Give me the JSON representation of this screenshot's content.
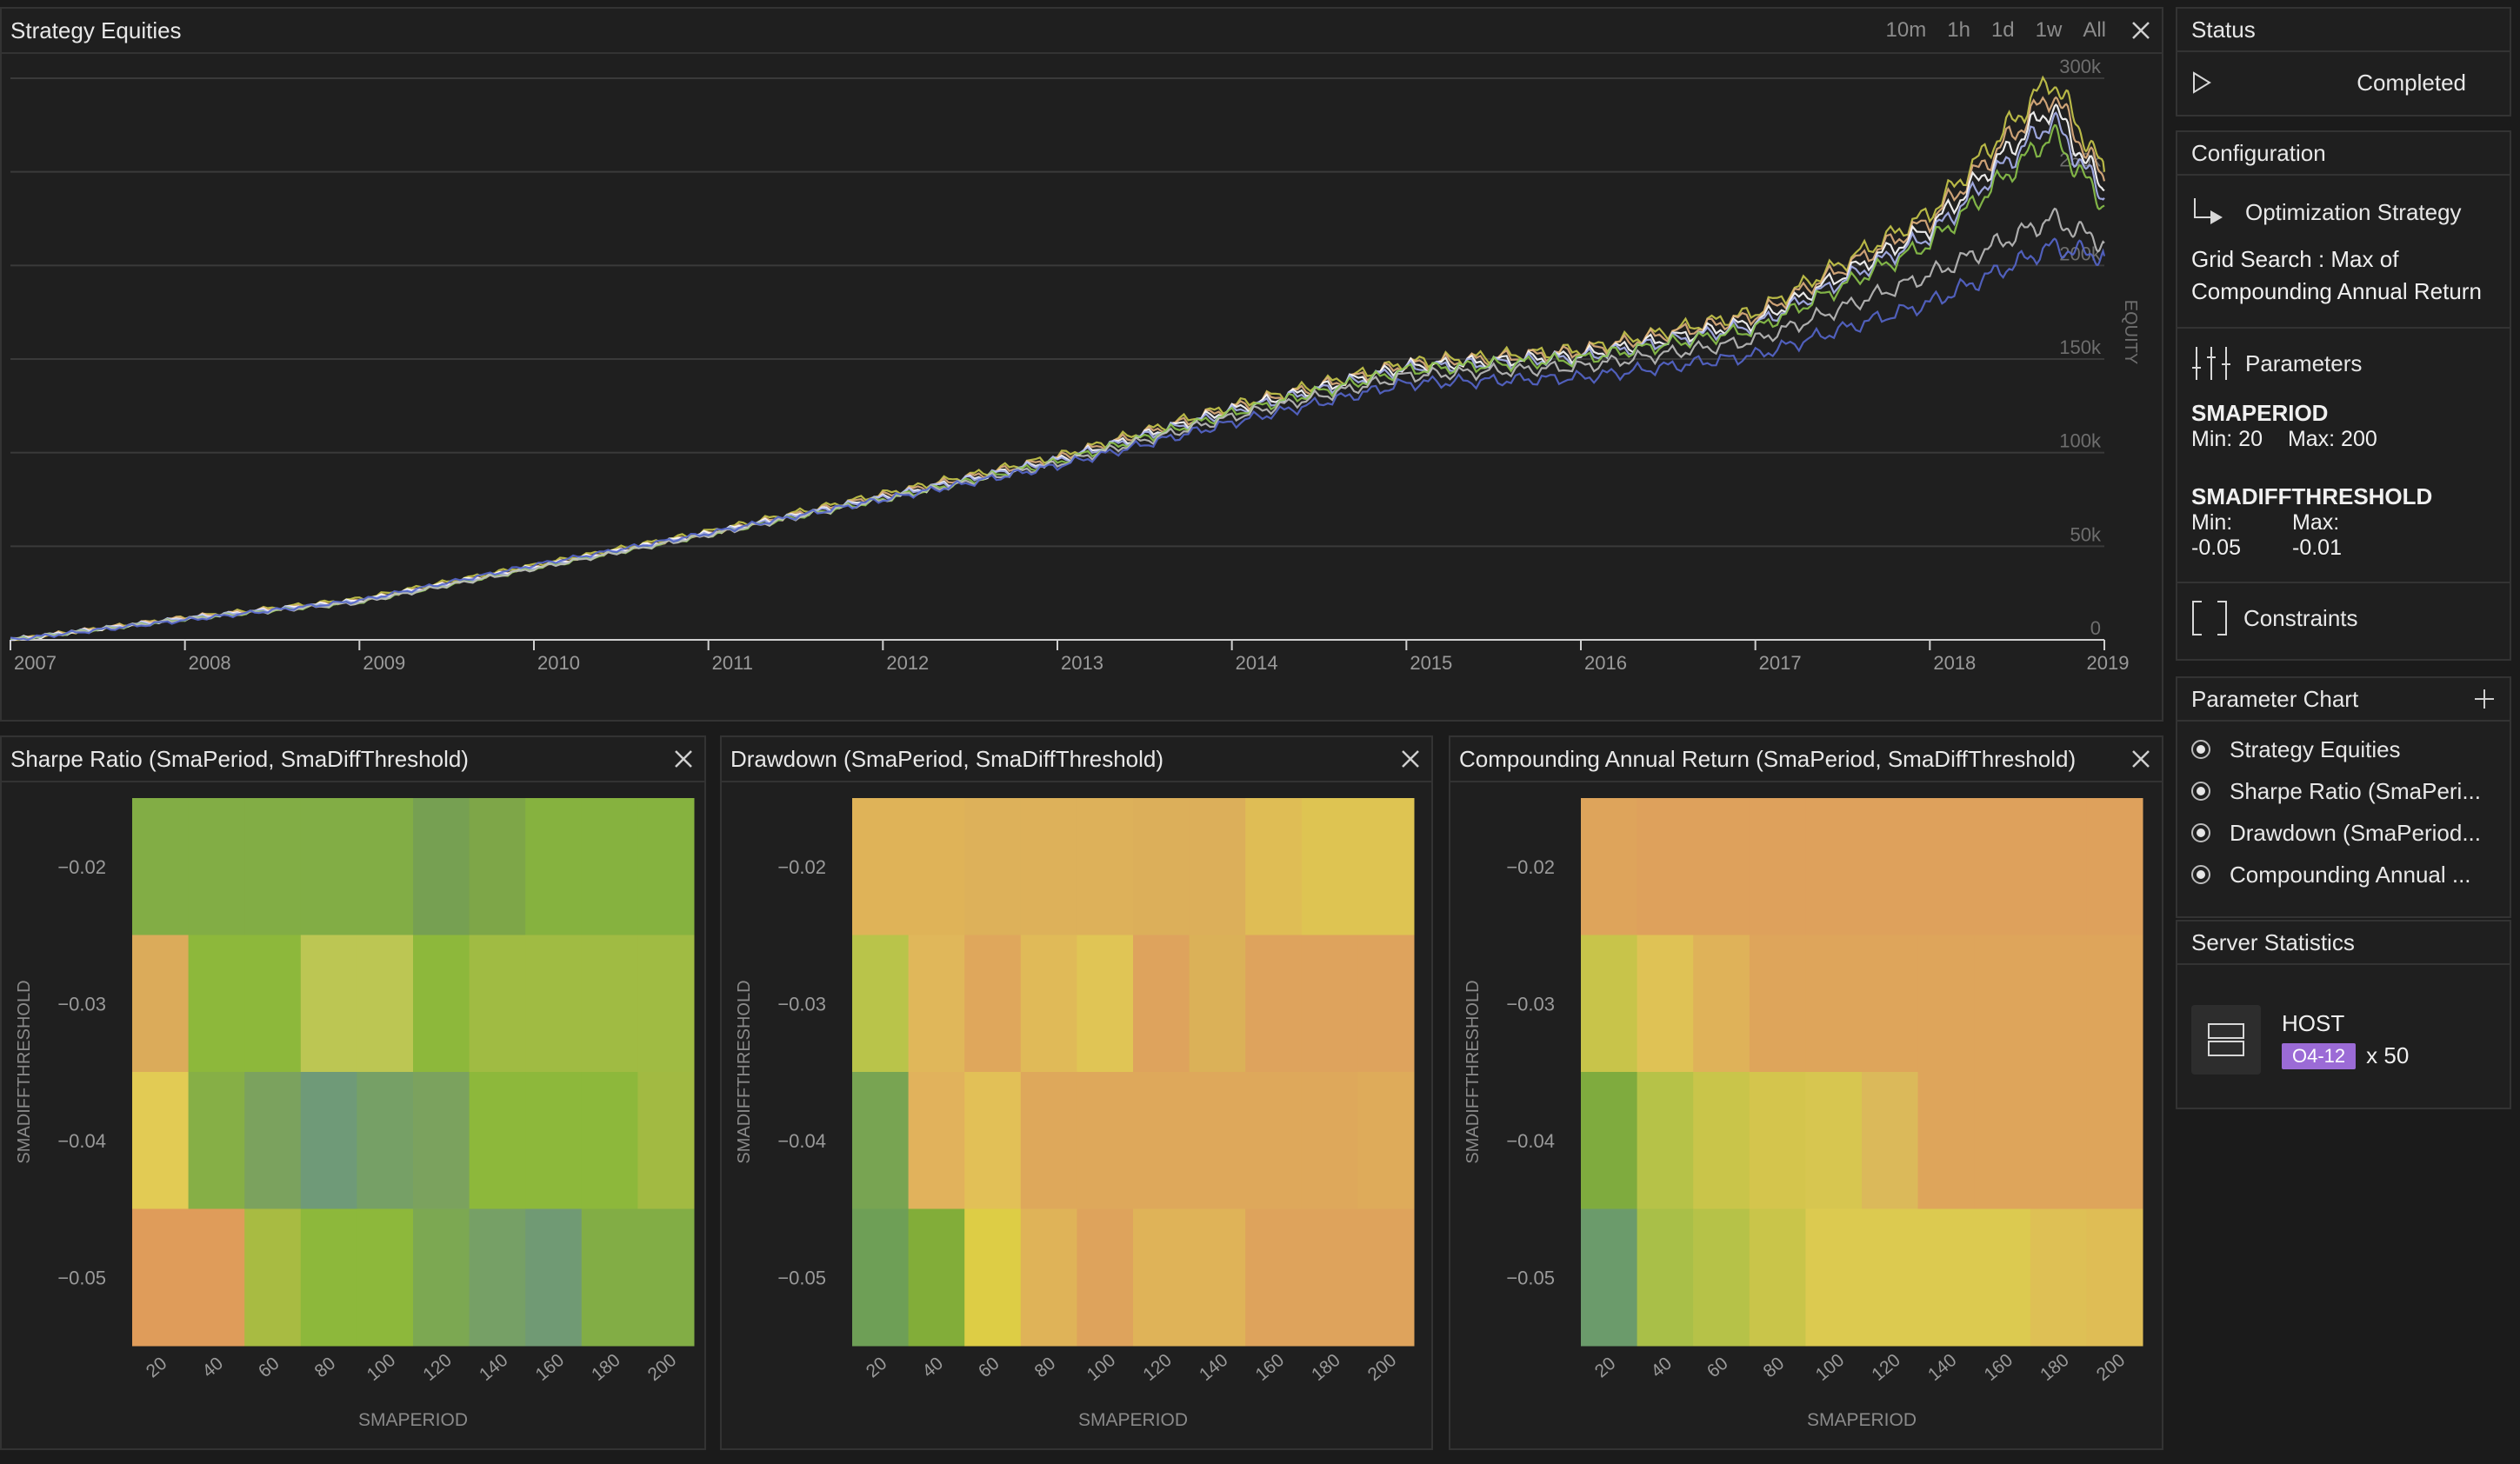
{
  "colors": {
    "background": "#1b1b1b",
    "panel": "#1f1f1f",
    "border": "#333333",
    "host_badge": "#9b6bd6"
  },
  "equity_panel": {
    "title": "Strategy Equities",
    "timeframes": [
      "10m",
      "1h",
      "1d",
      "1w",
      "All"
    ],
    "close_icon": "close-icon",
    "axis_label": "EQUITY",
    "y_ticks": [
      "0",
      "50k",
      "100k",
      "150k",
      "200k",
      "250k",
      "300k"
    ],
    "x_ticks": [
      "2007",
      "2008",
      "2009",
      "2010",
      "2011",
      "2012",
      "2013",
      "2014",
      "2015",
      "2016",
      "2017",
      "2018",
      "2019"
    ]
  },
  "chart_data": [
    {
      "type": "line",
      "title": "Strategy Equities",
      "ylabel": "EQUITY",
      "ylim": [
        0,
        300000
      ],
      "xlim": [
        "2007",
        "2019"
      ],
      "x": [
        "2007",
        "2008",
        "2009",
        "2010",
        "2011",
        "2012",
        "2013",
        "2014",
        "2015",
        "2016",
        "2017",
        "2018",
        "2018.7",
        "2019"
      ],
      "series": [
        {
          "values": [
            0,
            12000,
            22000,
            40000,
            58000,
            78000,
            98000,
            125000,
            148000,
            155000,
            175000,
            228000,
            300000,
            250000
          ],
          "color": "#c9c94a"
        },
        {
          "values": [
            0,
            12000,
            21000,
            39000,
            57000,
            77000,
            97000,
            124000,
            147000,
            154000,
            173000,
            224000,
            292000,
            245000
          ],
          "color": "#e0b080"
        },
        {
          "values": [
            0,
            11500,
            21000,
            39000,
            57000,
            76000,
            96000,
            123000,
            146000,
            152000,
            170000,
            220000,
            285000,
            240000
          ],
          "color": "#ffffff"
        },
        {
          "values": [
            0,
            11500,
            20500,
            38500,
            56500,
            76000,
            96000,
            122000,
            145000,
            151000,
            168000,
            216000,
            278000,
            236000
          ],
          "color": "#aab4f0"
        },
        {
          "values": [
            0,
            11000,
            20000,
            38000,
            56000,
            75000,
            95000,
            121000,
            144000,
            150000,
            166000,
            212000,
            270000,
            232000
          ],
          "color": "#8bc34a"
        },
        {
          "values": [
            0,
            11000,
            20000,
            38000,
            56000,
            75000,
            94000,
            119000,
            141000,
            146000,
            160000,
            195000,
            225000,
            212000
          ],
          "color": "#bdbdbd"
        },
        {
          "values": [
            0,
            10500,
            21000,
            40000,
            57000,
            75000,
            93000,
            116000,
            137000,
            140000,
            152000,
            180000,
            210000,
            205000
          ],
          "color": "#5566cc"
        }
      ]
    },
    {
      "type": "heatmap",
      "title": "Sharpe Ratio (SmaPeriod, SmaDiffThreshold)",
      "xlabel": "SMAPERIOD",
      "ylabel": "SMADIFFTHRESHOLD",
      "x": [
        20,
        40,
        60,
        80,
        100,
        120,
        140,
        160,
        180,
        200
      ],
      "y": [
        -0.02,
        -0.03,
        -0.04,
        -0.05
      ],
      "colors": [
        [
          "#82ad45",
          "#82ad45",
          "#82ad45",
          "#82ad45",
          "#82ad45",
          "#76a052",
          "#7ea648",
          "#86b23f",
          "#86b23f",
          "#86b23f"
        ],
        [
          "#dbab5a",
          "#8db83b",
          "#8db83b",
          "#bcc653",
          "#bcc653",
          "#8db83b",
          "#a0bb43",
          "#a0bb43",
          "#a0bb43",
          "#a0bb43"
        ],
        [
          "#e2cb54",
          "#86af46",
          "#7ba25e",
          "#6f9a78",
          "#76a066",
          "#7ba25e",
          "#8db83b",
          "#8db83b",
          "#8db83b",
          "#a2ba42"
        ],
        [
          "#df9c5a",
          "#df9c5a",
          "#a8bb42",
          "#8db83b",
          "#8db83b",
          "#7ca852",
          "#76a066",
          "#709a74",
          "#82ad45",
          "#82ad45"
        ]
      ]
    },
    {
      "type": "heatmap",
      "title": "Drawdown (SmaPeriod, SmaDiffThreshold)",
      "xlabel": "SMAPERIOD",
      "ylabel": "SMADIFFTHRESHOLD",
      "x": [
        20,
        40,
        60,
        80,
        100,
        120,
        140,
        160,
        180,
        200
      ],
      "y": [
        -0.02,
        -0.03,
        -0.04,
        -0.05
      ],
      "colors": [
        [
          "#dfb358",
          "#dfb358",
          "#ddb15a",
          "#ddb15a",
          "#ddb15a",
          "#dcaf5a",
          "#dcaf5a",
          "#dfbd55",
          "#dec452",
          "#dec452"
        ],
        [
          "#b9c44a",
          "#e0b75a",
          "#dfa75c",
          "#e0ba58",
          "#e0c555",
          "#dea35d",
          "#dbb158",
          "#dea35d",
          "#dea35d",
          "#dea35d"
        ],
        [
          "#78a452",
          "#e1b25c",
          "#e2c057",
          "#dea85b",
          "#dea85b",
          "#dea85b",
          "#dea85b",
          "#dea85b",
          "#dea85b",
          "#deab5a"
        ],
        [
          "#6e9f56",
          "#82ad39",
          "#ddcd45",
          "#dfb358",
          "#dea35c",
          "#dfb358",
          "#dfb358",
          "#dea35c",
          "#dea35c",
          "#dea35c"
        ]
      ]
    },
    {
      "type": "heatmap",
      "title": "Compounding Annual Return (SmaPeriod, SmaDiffThreshold)",
      "xlabel": "SMAPERIOD",
      "ylabel": "SMADIFFTHRESHOLD",
      "x": [
        20,
        40,
        60,
        80,
        100,
        120,
        140,
        160,
        180,
        200
      ],
      "y": [
        -0.02,
        -0.03,
        -0.04,
        -0.05
      ],
      "colors": [
        [
          "#dea45b",
          "#dea15c",
          "#dea15c",
          "#dea15c",
          "#dea15c",
          "#dea15c",
          "#dea15c",
          "#dea15c",
          "#dea15c",
          "#dea15c"
        ],
        [
          "#c8c44a",
          "#dfc255",
          "#dfb259",
          "#dea55b",
          "#dea55b",
          "#dea55b",
          "#dea55b",
          "#dea55b",
          "#dea55b",
          "#dea55b"
        ],
        [
          "#7fab3e",
          "#b6c248",
          "#c9c54a",
          "#d4c54d",
          "#d7c650",
          "#dbb95a",
          "#dea55b",
          "#dea55b",
          "#dea55b",
          "#dea55b"
        ],
        [
          "#6b9b6b",
          "#a9bf48",
          "#b6c248",
          "#c9c54a",
          "#dcca50",
          "#dcca50",
          "#dcca50",
          "#dcca50",
          "#dec055",
          "#dfbd55"
        ]
      ]
    }
  ],
  "heatmaps": [
    {
      "title": "Sharpe Ratio (SmaPeriod, SmaDiffThreshold)",
      "xlabel": "SMAPERIOD",
      "ylabel": "SMADIFFTHRESHOLD",
      "x_ticks": [
        "20",
        "40",
        "60",
        "80",
        "100",
        "120",
        "140",
        "160",
        "180",
        "200"
      ],
      "y_ticks": [
        "−0.02",
        "−0.03",
        "−0.04",
        "−0.05"
      ]
    },
    {
      "title": "Drawdown (SmaPeriod, SmaDiffThreshold)",
      "xlabel": "SMAPERIOD",
      "ylabel": "SMADIFFTHRESHOLD",
      "x_ticks": [
        "20",
        "40",
        "60",
        "80",
        "100",
        "120",
        "140",
        "160",
        "180",
        "200"
      ],
      "y_ticks": [
        "−0.02",
        "−0.03",
        "−0.04",
        "−0.05"
      ]
    },
    {
      "title": "Compounding Annual Return (SmaPeriod, SmaDiffThreshold)",
      "xlabel": "SMAPERIOD",
      "ylabel": "SMADIFFTHRESHOLD",
      "x_ticks": [
        "20",
        "40",
        "60",
        "80",
        "100",
        "120",
        "140",
        "160",
        "180",
        "200"
      ],
      "y_ticks": [
        "−0.02",
        "−0.03",
        "−0.04",
        "−0.05"
      ]
    }
  ],
  "status": {
    "header": "Status",
    "state": "Completed",
    "icon": "play-icon"
  },
  "configuration": {
    "header": "Configuration",
    "strategy_label": "Optimization Strategy",
    "strategy_icon": "route-arrow-icon",
    "strategy_value_line1": "Grid Search : Max of",
    "strategy_value_line2": "Compounding Annual Return",
    "parameters_label": "Parameters",
    "parameters_icon": "sliders-icon",
    "params": [
      {
        "name": "SMAPERIOD",
        "min_label": "Min: 20",
        "max_label": "Max: 200"
      },
      {
        "name": "SMADIFFTHRESHOLD",
        "min_label": "Min:",
        "min_value": "-0.05",
        "max_label": "Max:",
        "max_value": "-0.01"
      }
    ],
    "constraints_label": "Constraints",
    "constraints_icon": "brackets-icon"
  },
  "parameter_chart": {
    "header": "Parameter Chart",
    "add_icon": "plus-icon",
    "items": [
      "Strategy Equities",
      "Sharpe Ratio (SmaPeri...",
      "Drawdown (SmaPeriod...",
      "Compounding Annual ..."
    ]
  },
  "server_statistics": {
    "header": "Server Statistics",
    "host_label": "HOST",
    "badge": "O4-12",
    "count": "x 50",
    "icon": "server-icon"
  }
}
